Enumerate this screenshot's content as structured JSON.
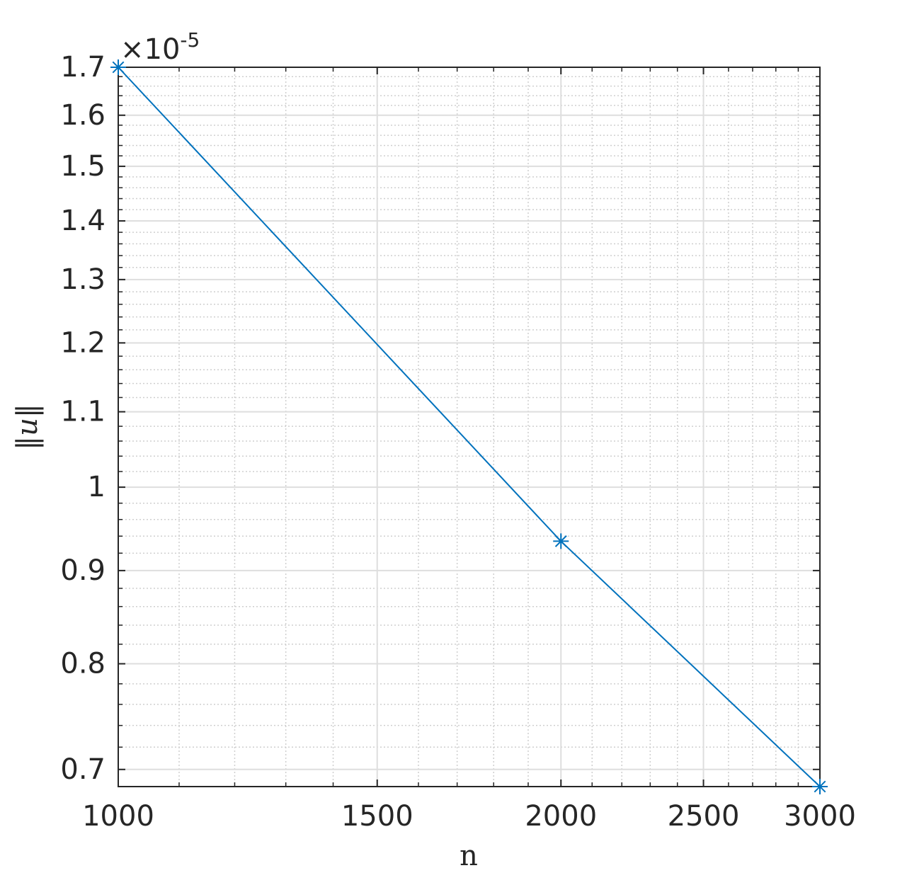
{
  "chart_data": {
    "type": "line",
    "x_label": "n",
    "y_label": "‖u‖",
    "y_exponent_base": "×10",
    "y_exponent_power": "-5",
    "x": [
      1000,
      2000,
      3000
    ],
    "series": [
      {
        "name": "‖u‖",
        "color": "#0072bd",
        "marker": "asterisk",
        "values": [
          1.7,
          0.934,
          0.685
        ]
      }
    ],
    "xscale": "log",
    "yscale": "log",
    "xlim": [
      1000,
      3000
    ],
    "ylim": [
      0.685,
      1.7
    ],
    "xticks": [
      1000,
      1500,
      2000,
      2500,
      3000
    ],
    "yticks": [
      0.7,
      0.8,
      0.9,
      1,
      1.1,
      1.2,
      1.3,
      1.4,
      1.5,
      1.6,
      1.7
    ],
    "xminorticks": [
      1100,
      1200,
      1300,
      1400,
      1600,
      1700,
      1800,
      1900,
      2100,
      2200,
      2300,
      2400,
      2600,
      2700,
      2800,
      2900
    ],
    "yminorticks": [
      0.72,
      0.74,
      0.76,
      0.78,
      0.82,
      0.84,
      0.86,
      0.88,
      0.92,
      0.94,
      0.96,
      0.98,
      1.02,
      1.04,
      1.06,
      1.08,
      1.12,
      1.14,
      1.16,
      1.18,
      1.22,
      1.24,
      1.26,
      1.28,
      1.32,
      1.34,
      1.36,
      1.38,
      1.42,
      1.44,
      1.46,
      1.48,
      1.52,
      1.54,
      1.56,
      1.58,
      1.62,
      1.64,
      1.66,
      1.68
    ],
    "grid": true,
    "minor_grid": true
  }
}
